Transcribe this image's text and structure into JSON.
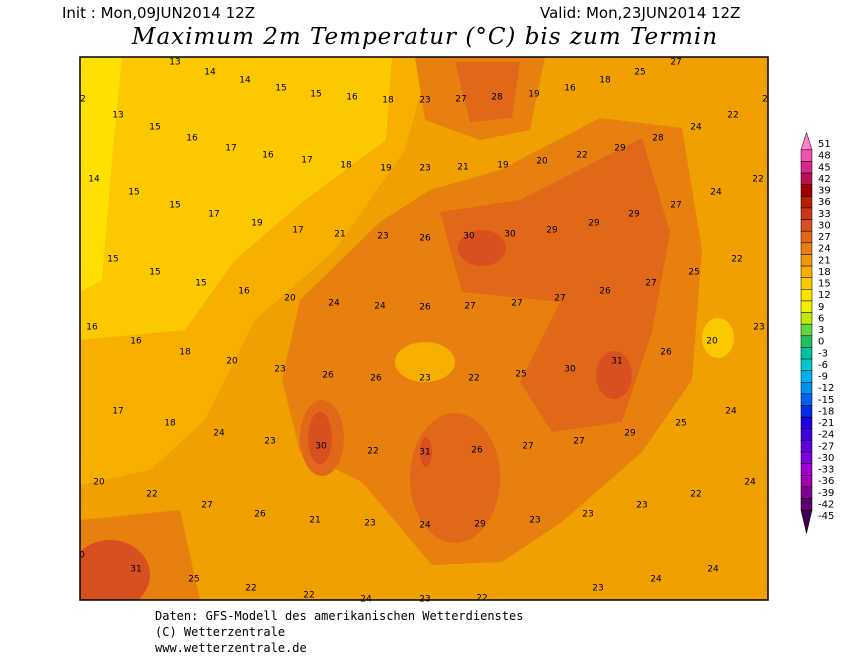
{
  "header": {
    "init": "Init : Mon,09JUN2014 12Z",
    "valid": "Valid: Mon,23JUN2014 12Z",
    "title": "Maximum 2m Temperatur (°C) bis zum Termin"
  },
  "map": {
    "labels": [
      13,
      14,
      14,
      25,
      27,
      2,
      15,
      15,
      16,
      18,
      23,
      27,
      28,
      19,
      16,
      18,
      2,
      13,
      22,
      15,
      24,
      16,
      28,
      17,
      29,
      16,
      22,
      17,
      20,
      22,
      18,
      19,
      23,
      21,
      19,
      14,
      15,
      24,
      15,
      27,
      17,
      29,
      19,
      29,
      17,
      29,
      30,
      30,
      26,
      23,
      21,
      15,
      22,
      15,
      25,
      15,
      27,
      16,
      26,
      20,
      27,
      27,
      27,
      26,
      24,
      24,
      16,
      23,
      16,
      20,
      18,
      26,
      20,
      31,
      23,
      30,
      25,
      22,
      23,
      26,
      26,
      17,
      24,
      18,
      25,
      24,
      29,
      23,
      27,
      27,
      26,
      31,
      22,
      30,
      20,
      24,
      22,
      22,
      27,
      23,
      26,
      23,
      23,
      29,
      24,
      23,
      21,
      0,
      31,
      24,
      25,
      24,
      22,
      23,
      22,
      24,
      23,
      22
    ]
  },
  "colorbar": {
    "labels": [
      51,
      48,
      45,
      42,
      39,
      36,
      33,
      30,
      27,
      24,
      21,
      18,
      15,
      12,
      9,
      6,
      3,
      0,
      -3,
      -6,
      -9,
      -12,
      -15,
      -18,
      -21,
      -24,
      -27,
      -30,
      -33,
      -36,
      -39,
      -42,
      -45
    ],
    "colors": [
      "#ff80c8",
      "#f050b0",
      "#d82890",
      "#b81050",
      "#a00000",
      "#b82000",
      "#c83818",
      "#d85020",
      "#e06818",
      "#e88010",
      "#f09808",
      "#f8b000",
      "#fcc800",
      "#ffe000",
      "#f0f000",
      "#c0e800",
      "#60d840",
      "#20c060",
      "#00c0a0",
      "#00c8d0",
      "#00b0f0",
      "#0090f0",
      "#0060f0",
      "#0030e0",
      "#2000e0",
      "#4000e0",
      "#6000e0",
      "#8000e0",
      "#a000d0",
      "#a000b0",
      "#800090",
      "#600070",
      "#400050"
    ]
  },
  "footer": {
    "lines": [
      "Daten: GFS-Modell des amerikanischen Wetterdienstes",
      "(C) Wetterzentrale",
      "www.wetterzentrale.de"
    ]
  }
}
